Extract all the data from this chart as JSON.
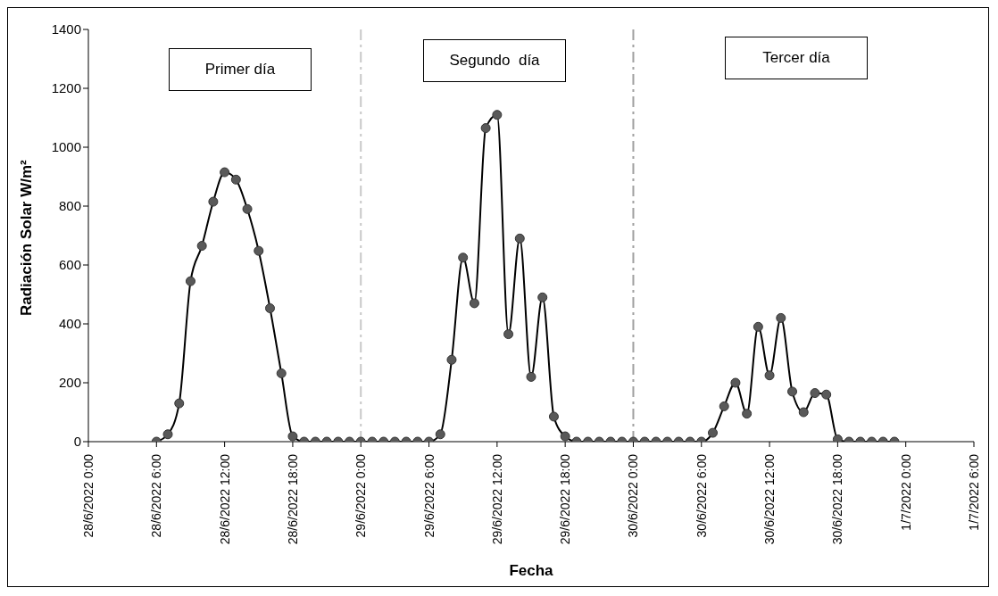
{
  "chart_data": {
    "type": "line",
    "xlabel": "Fecha",
    "ylabel": "Radiación Solar W/m²",
    "x": [
      "2022-06-28T06:00",
      "2022-06-28T07:00",
      "2022-06-28T08:00",
      "2022-06-28T09:00",
      "2022-06-28T10:00",
      "2022-06-28T11:00",
      "2022-06-28T12:00",
      "2022-06-28T13:00",
      "2022-06-28T14:00",
      "2022-06-28T15:00",
      "2022-06-28T16:00",
      "2022-06-28T17:00",
      "2022-06-28T18:00",
      "2022-06-28T19:00",
      "2022-06-28T20:00",
      "2022-06-28T21:00",
      "2022-06-28T22:00",
      "2022-06-28T23:00",
      "2022-06-29T00:00",
      "2022-06-29T01:00",
      "2022-06-29T02:00",
      "2022-06-29T03:00",
      "2022-06-29T04:00",
      "2022-06-29T05:00",
      "2022-06-29T06:00",
      "2022-06-29T07:00",
      "2022-06-29T08:00",
      "2022-06-29T09:00",
      "2022-06-29T10:00",
      "2022-06-29T11:00",
      "2022-06-29T12:00",
      "2022-06-29T13:00",
      "2022-06-29T14:00",
      "2022-06-29T15:00",
      "2022-06-29T16:00",
      "2022-06-29T17:00",
      "2022-06-29T18:00",
      "2022-06-29T19:00",
      "2022-06-29T20:00",
      "2022-06-29T21:00",
      "2022-06-29T22:00",
      "2022-06-29T23:00",
      "2022-06-30T00:00",
      "2022-06-30T01:00",
      "2022-06-30T02:00",
      "2022-06-30T03:00",
      "2022-06-30T04:00",
      "2022-06-30T05:00",
      "2022-06-30T06:00",
      "2022-06-30T07:00",
      "2022-06-30T08:00",
      "2022-06-30T09:00",
      "2022-06-30T10:00",
      "2022-06-30T11:00",
      "2022-06-30T12:00",
      "2022-06-30T13:00",
      "2022-06-30T14:00",
      "2022-06-30T15:00",
      "2022-06-30T16:00",
      "2022-06-30T17:00",
      "2022-06-30T18:00",
      "2022-06-30T19:00",
      "2022-06-30T20:00",
      "2022-06-30T21:00",
      "2022-06-30T22:00",
      "2022-06-30T23:00"
    ],
    "series": [
      {
        "color": "#000000",
        "values": [
          0,
          25,
          130,
          545,
          665,
          815,
          915,
          890,
          790,
          648,
          453,
          232,
          18,
          0,
          0,
          0,
          0,
          0,
          0,
          0,
          0,
          0,
          0,
          0,
          0,
          25,
          278,
          625,
          470,
          1065,
          1110,
          365,
          690,
          220,
          490,
          85,
          18,
          0,
          0,
          0,
          0,
          0,
          0,
          0,
          0,
          0,
          0,
          0,
          0,
          30,
          120,
          200,
          95,
          390,
          225,
          420,
          170,
          100,
          165,
          160,
          8,
          0,
          0,
          0,
          0,
          0
        ]
      }
    ],
    "xlim": [
      "2022-06-28T00:00",
      "2022-07-01T06:00"
    ],
    "xticks": [
      {
        "value": "2022-06-28T00:00",
        "label": "28/6/2022 0:00"
      },
      {
        "value": "2022-06-28T06:00",
        "label": "28/6/2022 6:00"
      },
      {
        "value": "2022-06-28T12:00",
        "label": "28/6/2022 12:00"
      },
      {
        "value": "2022-06-28T18:00",
        "label": "28/6/2022 18:00"
      },
      {
        "value": "2022-06-29T00:00",
        "label": "29/6/2022 0:00"
      },
      {
        "value": "2022-06-29T06:00",
        "label": "29/6/2022 6:00"
      },
      {
        "value": "2022-06-29T12:00",
        "label": "29/6/2022 12:00"
      },
      {
        "value": "2022-06-29T18:00",
        "label": "29/6/2022 18:00"
      },
      {
        "value": "2022-06-30T00:00",
        "label": "30/6/2022 0:00"
      },
      {
        "value": "2022-06-30T06:00",
        "label": "30/6/2022 6:00"
      },
      {
        "value": "2022-06-30T12:00",
        "label": "30/6/2022 12:00"
      },
      {
        "value": "2022-06-30T18:00",
        "label": "30/6/2022 18:00"
      },
      {
        "value": "2022-07-01T00:00",
        "label": "1/7/2022 0:00"
      },
      {
        "value": "2022-07-01T06:00",
        "label": "1/7/2022 6:00"
      }
    ],
    "ylim": [
      0,
      1400
    ],
    "yticks": [
      0,
      200,
      400,
      600,
      800,
      1000,
      1200,
      1400
    ],
    "grid": false,
    "legend": false,
    "marker": "circle",
    "line_style": "solid",
    "ref_lines": [
      {
        "axis": "x",
        "value": "2022-06-29T00:00",
        "color": "#c8c8c8",
        "line_style": "dashed"
      },
      {
        "axis": "x",
        "value": "2022-06-30T00:00",
        "color": "#a0a0a0",
        "line_style": "dashed"
      }
    ],
    "annotations": [
      "Primer día",
      "Segundo  día",
      "Tercer día"
    ]
  }
}
